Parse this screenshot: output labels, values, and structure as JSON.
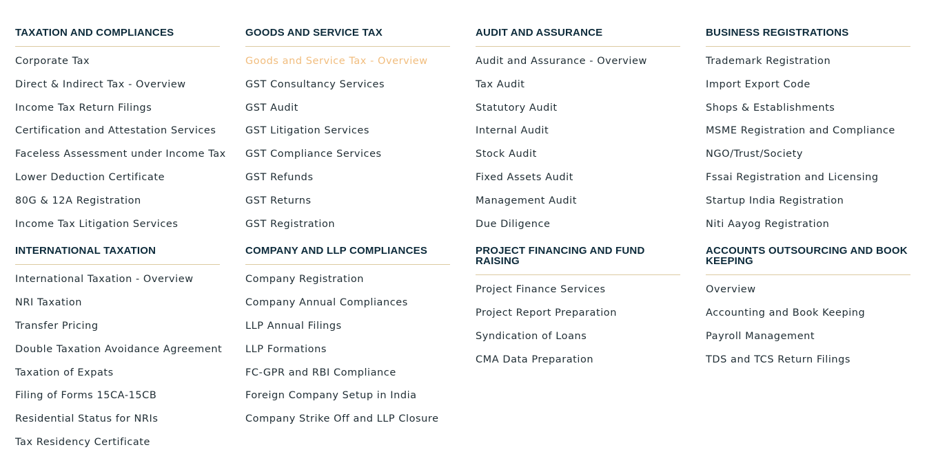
{
  "colors": {
    "heading": "#0c2a3a",
    "link": "#1e2c33",
    "link_active": "#f1bd7e",
    "divider": "#dccaa0"
  },
  "sections": [
    {
      "title": "TAXATION AND COMPLIANCES",
      "items": [
        "Corporate Tax",
        "Direct & Indirect Tax - Overview",
        "Income Tax Return Filings",
        "Certification and Attestation Services",
        "Faceless Assessment under Income Tax",
        "Lower Deduction Certificate",
        "80G & 12A Registration",
        "Income Tax Litigation Services"
      ]
    },
    {
      "title": "GOODS AND SERVICE TAX",
      "items": [
        "Goods and Service Tax - Overview",
        "GST Consultancy Services",
        "GST Audit",
        "GST Litigation Services",
        "GST Compliance Services",
        "GST Refunds",
        "GST Returns",
        "GST Registration"
      ]
    },
    {
      "title": "AUDIT AND ASSURANCE",
      "items": [
        "Audit and Assurance - Overview",
        "Tax Audit",
        "Statutory Audit",
        "Internal Audit",
        "Stock Audit",
        "Fixed Assets Audit",
        "Management Audit",
        "Due Diligence"
      ]
    },
    {
      "title": "BUSINESS REGISTRATIONS",
      "items": [
        "Trademark Registration",
        "Import Export Code",
        "Shops & Establishments",
        "MSME Registration and Compliance",
        "NGO/Trust/Society",
        "Fssai Registration and Licensing",
        "Startup India Registration",
        "Niti Aayog Registration"
      ]
    },
    {
      "title": "INTERNATIONAL TAXATION",
      "items": [
        "International Taxation - Overview",
        "NRI Taxation",
        "Transfer Pricing",
        "Double Taxation Avoidance Agreement",
        "Taxation of Expats",
        "Filing of Forms 15CA-15CB",
        "Residential Status for NRIs",
        "Tax Residency Certificate"
      ]
    },
    {
      "title": "COMPANY AND LLP COMPLIANCES",
      "items": [
        "Company Registration",
        "Company Annual Compliances",
        "LLP Annual Filings",
        "LLP Formations",
        "FC-GPR and RBI Compliance",
        "Foreign Company Setup in India",
        "Company Strike Off and LLP Closure"
      ]
    },
    {
      "title": "PROJECT FINANCING AND FUND RAISING",
      "items": [
        "Project Finance Services",
        "Project Report Preparation",
        "Syndication of Loans",
        "CMA Data Preparation"
      ]
    },
    {
      "title": "ACCOUNTS OUTSOURCING AND BOOK KEEPING",
      "items": [
        "Overview",
        "Accounting and Book Keeping",
        "Payroll Management",
        "TDS and TCS Return Filings"
      ]
    }
  ]
}
